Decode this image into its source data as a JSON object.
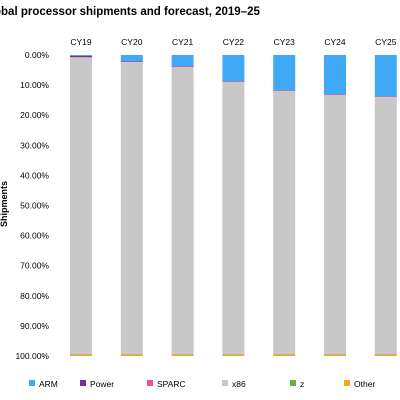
{
  "chart_data": {
    "type": "bar",
    "stacked": true,
    "title": "obal processor shipments and forecast, 2019–25",
    "ylabel": "Shipments",
    "xlabel": "",
    "y_axis_reversed": true,
    "ylim": [
      0,
      100
    ],
    "y_ticks": [
      "0.00%",
      "10.00%",
      "20.00%",
      "30.00%",
      "40.00%",
      "50.00%",
      "60.00%",
      "70.00%",
      "80.00%",
      "90.00%",
      "100.00%"
    ],
    "categories": [
      "CY19",
      "CY20",
      "CY21",
      "CY22",
      "CY23",
      "CY24",
      "CY25"
    ],
    "series": [
      {
        "name": "ARM",
        "color": "#3fa9f5",
        "values": [
          0.3,
          2.0,
          3.7,
          8.7,
          11.7,
          13.0,
          13.7
        ]
      },
      {
        "name": "Power",
        "color": "#7030a0",
        "values": [
          0.4,
          0.2,
          0.2,
          0.1,
          0.1,
          0.1,
          0.1
        ]
      },
      {
        "name": "SPARC",
        "color": "#e0559a",
        "values": [
          0.1,
          0.1,
          0.1,
          0.1,
          0.1,
          0.1,
          0.1
        ]
      },
      {
        "name": "x86",
        "color": "#c8c8c8",
        "values": [
          98.7,
          97.2,
          95.5,
          90.6,
          87.6,
          86.3,
          85.6
        ]
      },
      {
        "name": "z",
        "color": "#70ad47",
        "values": [
          0.1,
          0.1,
          0.1,
          0.1,
          0.1,
          0.1,
          0.1
        ]
      },
      {
        "name": "Other",
        "color": "#f5a623",
        "values": [
          0.4,
          0.4,
          0.4,
          0.4,
          0.4,
          0.4,
          0.4
        ]
      }
    ],
    "grid": false,
    "legend_position": "bottom"
  }
}
